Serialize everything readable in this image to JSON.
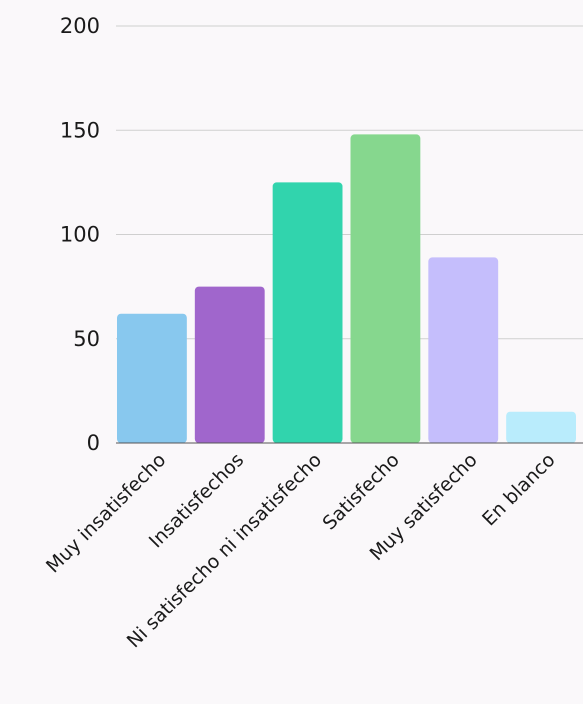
{
  "chart_data": {
    "type": "bar",
    "categories": [
      "Muy insatisfecho",
      "Insatisfechos",
      "Ni satisfecho ni insatisfecho",
      "Satisfecho",
      "Muy satisfecho",
      "En blanco"
    ],
    "values": [
      62,
      75,
      125,
      148,
      89,
      15
    ],
    "colors": [
      "#88c8ee",
      "#a066cc",
      "#31d4ad",
      "#86d78e",
      "#c5befc",
      "#b9ecfc"
    ],
    "ylim": [
      0,
      200
    ],
    "yticks": [
      "0",
      "50",
      "100",
      "150",
      "200"
    ],
    "grid": true,
    "legend": "none",
    "title": "",
    "xlabel": "",
    "ylabel": ""
  }
}
